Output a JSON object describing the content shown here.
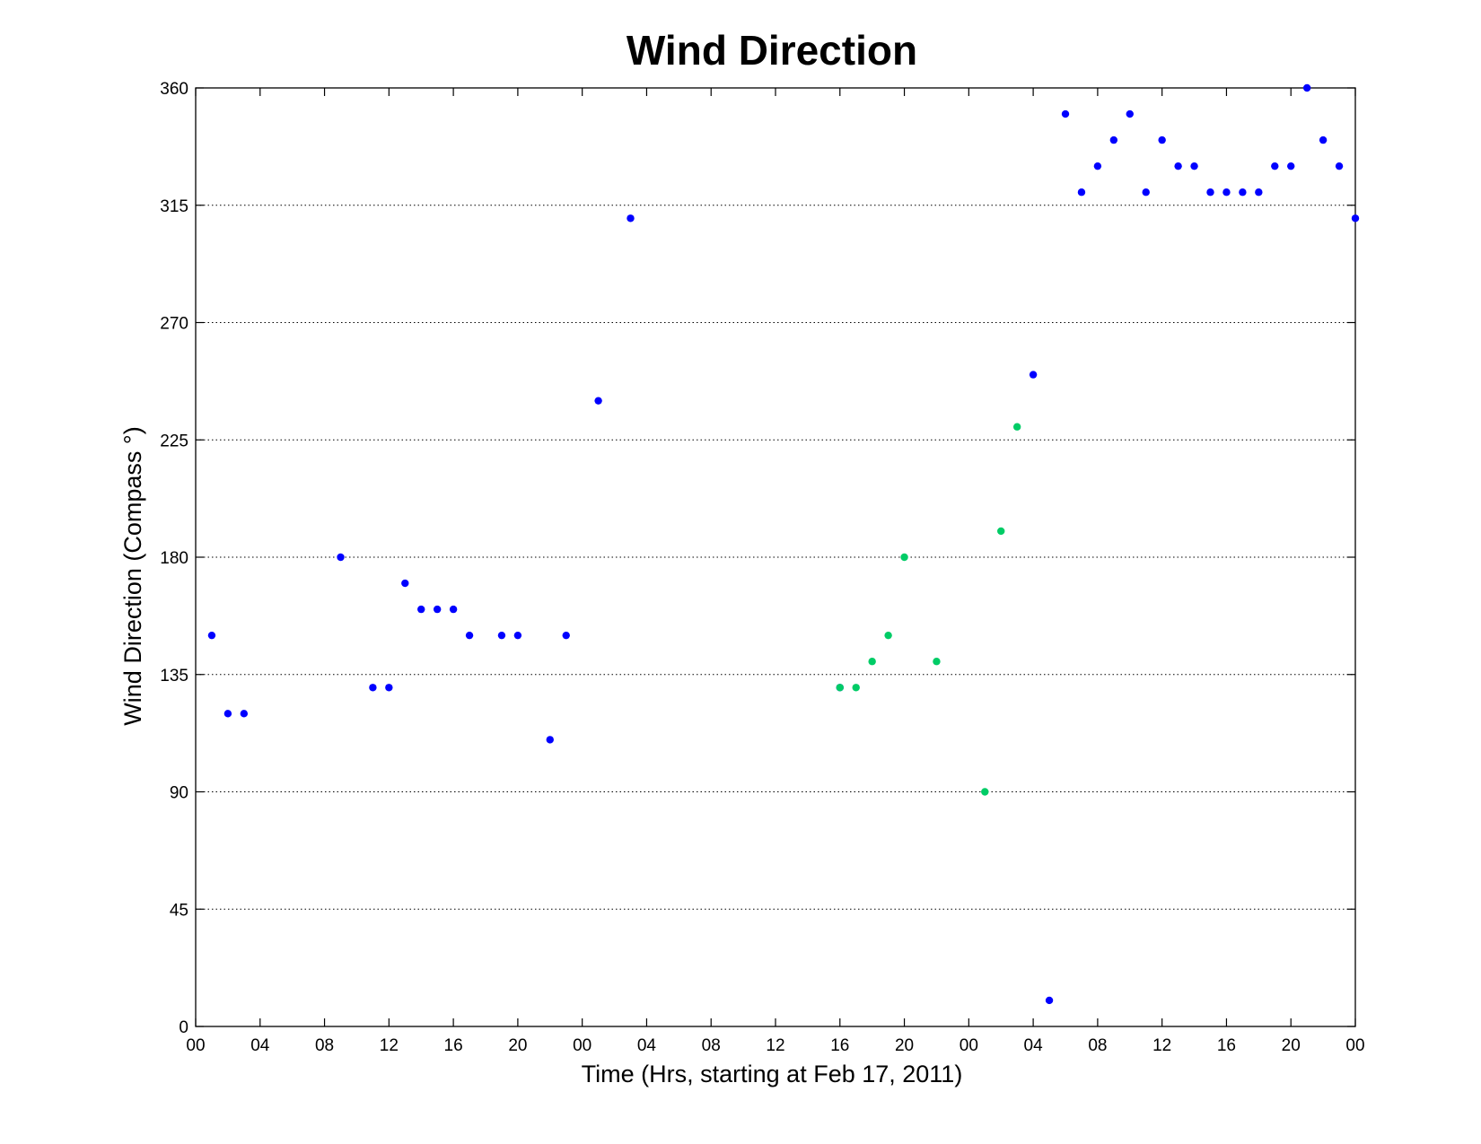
{
  "chart_data": {
    "type": "scatter",
    "title": "Wind Direction",
    "xlabel": "Time (Hrs, starting at Feb 17, 2011)",
    "ylabel": "Wind Direction (Compass °)",
    "xlim": [
      0,
      72
    ],
    "ylim": [
      0,
      360
    ],
    "x_ticks": [
      0,
      4,
      8,
      12,
      16,
      20,
      24,
      28,
      32,
      36,
      40,
      44,
      48,
      52,
      56,
      60,
      64,
      68,
      72
    ],
    "x_tick_labels": [
      "00",
      "04",
      "08",
      "12",
      "16",
      "20",
      "00",
      "04",
      "08",
      "12",
      "16",
      "20",
      "00",
      "04",
      "08",
      "12",
      "16",
      "20",
      "00"
    ],
    "y_ticks": [
      0,
      45,
      90,
      135,
      180,
      225,
      270,
      315,
      360
    ],
    "grid": "y-major dotted",
    "legend": "none",
    "series": [
      {
        "color": "#0000ff",
        "points": [
          [
            1,
            150
          ],
          [
            2,
            120
          ],
          [
            3,
            120
          ],
          [
            9,
            180
          ],
          [
            11,
            130
          ],
          [
            12,
            130
          ],
          [
            13,
            170
          ],
          [
            14,
            160
          ],
          [
            15,
            160
          ],
          [
            16,
            160
          ],
          [
            17,
            150
          ],
          [
            19,
            150
          ],
          [
            20,
            150
          ],
          [
            22,
            110
          ],
          [
            23,
            150
          ],
          [
            25,
            240
          ],
          [
            27,
            310
          ],
          [
            40,
            130
          ],
          [
            52,
            250
          ],
          [
            53,
            10
          ],
          [
            54,
            350
          ],
          [
            55,
            320
          ],
          [
            56,
            330
          ],
          [
            57,
            340
          ],
          [
            58,
            350
          ],
          [
            59,
            320
          ],
          [
            60,
            340
          ],
          [
            61,
            330
          ],
          [
            62,
            330
          ],
          [
            63,
            320
          ],
          [
            64,
            320
          ],
          [
            65,
            320
          ],
          [
            66,
            320
          ],
          [
            67,
            330
          ],
          [
            68,
            330
          ],
          [
            69,
            360
          ],
          [
            70,
            340
          ],
          [
            71,
            330
          ],
          [
            72,
            310
          ]
        ]
      },
      {
        "color": "#00cc66",
        "points": [
          [
            40,
            130
          ],
          [
            41,
            130
          ],
          [
            42,
            140
          ],
          [
            43,
            150
          ],
          [
            44,
            180
          ],
          [
            46,
            140
          ],
          [
            49,
            90
          ],
          [
            50,
            190
          ],
          [
            51,
            230
          ]
        ]
      }
    ]
  }
}
